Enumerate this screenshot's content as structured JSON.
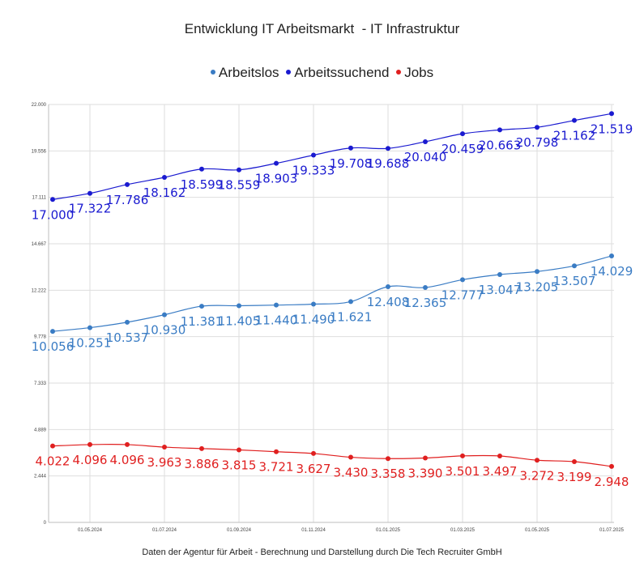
{
  "chart_data": {
    "type": "line",
    "title": "Entwicklung IT Arbeitsmarkt  - IT Infrastruktur",
    "footer": "Daten der Agentur für Arbeit - Berechnung und Darstellung durch Die Tech Recruiter GmbH",
    "legend_position": "top-center",
    "grid": true,
    "ylim": [
      0,
      22000
    ],
    "y_ticks": [
      {
        "value": 0,
        "label": "0"
      },
      {
        "value": 2444,
        "label": "2.444"
      },
      {
        "value": 4889,
        "label": "4.889"
      },
      {
        "value": 7333,
        "label": "7.333"
      },
      {
        "value": 9778,
        "label": "9.778"
      },
      {
        "value": 12222,
        "label": "12.222"
      },
      {
        "value": 14667,
        "label": "14.667"
      },
      {
        "value": 17111,
        "label": "17.111"
      },
      {
        "value": 19556,
        "label": "19.556"
      },
      {
        "value": 22000,
        "label": "22.000"
      }
    ],
    "x_tick_labels": [
      "01.05.2024",
      "01.07.2024",
      "01.09.2024",
      "01.11.2024",
      "01.01.2025",
      "01.03.2025",
      "01.05.2025",
      "01.07.2025"
    ],
    "x_tick_index": [
      1,
      3,
      5,
      7,
      9,
      11,
      13,
      15
    ],
    "point_count": 16,
    "series": [
      {
        "name": "Arbeitslos",
        "color": "#3a7cc4",
        "values": [
          10056,
          10251,
          10537,
          10930,
          11381,
          11405,
          11440,
          11490,
          11621,
          12408,
          12365,
          12777,
          13047,
          13205,
          13507,
          14029
        ],
        "labels": [
          "10.056",
          "10.251",
          "10.537",
          "10.930",
          "11.381",
          "11.405",
          "11.440",
          "11.490",
          "11.621",
          "12.408",
          "12.365",
          "12.777",
          "13.047",
          "13.205",
          "13.507",
          "14.029"
        ]
      },
      {
        "name": "Arbeitssuchend",
        "color": "#1a1ad0",
        "values": [
          17000,
          17322,
          17786,
          18162,
          18599,
          18559,
          18903,
          19333,
          19708,
          19688,
          20040,
          20459,
          20663,
          20798,
          21162,
          21519
        ],
        "labels": [
          "17.000",
          "17.322",
          "17.786",
          "18.162",
          "18.599",
          "18.559",
          "18.903",
          "19.333",
          "19.708",
          "19.688",
          "20.040",
          "20.459",
          "20.663",
          "20.798",
          "21.162",
          "21.519"
        ]
      },
      {
        "name": "Jobs",
        "color": "#e01f1f",
        "values": [
          4022,
          4096,
          4096,
          3963,
          3886,
          3815,
          3721,
          3627,
          3430,
          3358,
          3390,
          3501,
          3497,
          3272,
          3199,
          2948
        ],
        "labels": [
          "4.022",
          "4.096",
          "4.096",
          "3.963",
          "3.886",
          "3.815",
          "3.721",
          "3.627",
          "3.430",
          "3.358",
          "3.390",
          "3.501",
          "3.497",
          "3.272",
          "3.199",
          "2.948"
        ]
      }
    ]
  }
}
